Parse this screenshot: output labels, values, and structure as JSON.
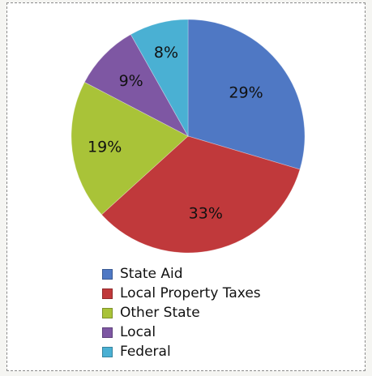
{
  "chart_data": {
    "type": "pie",
    "categories": [
      "State Aid",
      "Local Property Taxes",
      "Other State",
      "Local",
      "Federal"
    ],
    "values": [
      29,
      33,
      19,
      9,
      8
    ],
    "labels": [
      "29%",
      "33%",
      "19%",
      "9%",
      "8%"
    ],
    "colors": [
      "#4f78c4",
      "#c0393b",
      "#a9c338",
      "#7e57a3",
      "#4ab0d3"
    ],
    "legend_position": "bottom"
  }
}
